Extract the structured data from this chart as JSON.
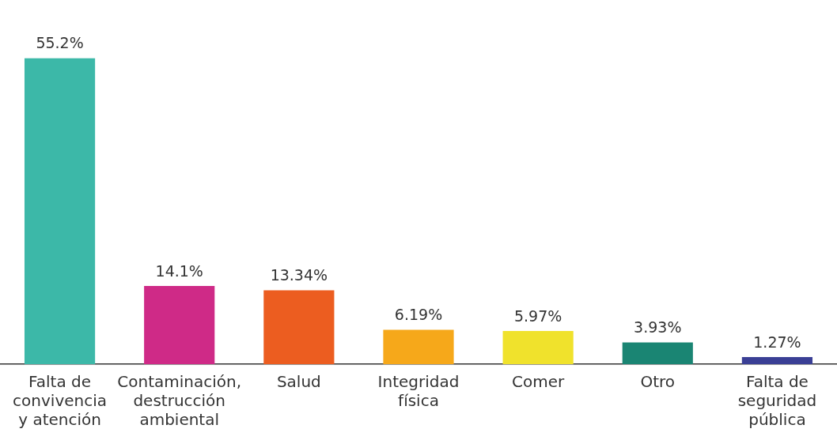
{
  "chart_data": {
    "type": "bar",
    "categories": [
      "Falta de convivencia y atención",
      "Contaminación, destrucción ambiental",
      "Salud",
      "Integridad física",
      "Comer",
      "Otro",
      "Falta de seguridad pública"
    ],
    "values": [
      55.2,
      14.1,
      13.34,
      6.19,
      5.97,
      3.93,
      1.27
    ],
    "colors": [
      "#3cb8a8",
      "#cf2a87",
      "#ec5d20",
      "#f6a81a",
      "#f0e22c",
      "#1a8573",
      "#3a3f95"
    ],
    "value_labels": [
      "55.2%",
      "14.1%",
      "13.34%",
      "6.19%",
      "5.97%",
      "3.93%",
      "1.27%"
    ],
    "grid": false,
    "legend": false
  }
}
